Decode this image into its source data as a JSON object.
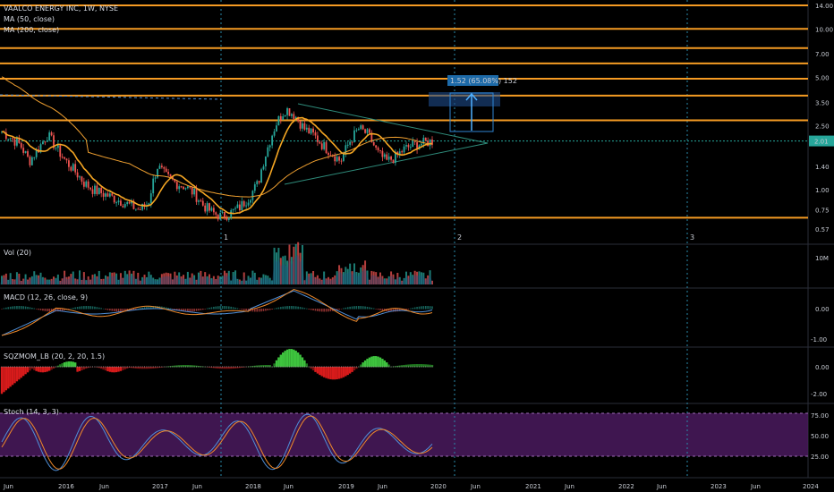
{
  "header": {
    "symbol_line": "VAALCO ENERGY INC, 1W, NYSE",
    "indicator_1": "MA (50, close)",
    "indicator_2": "MA (200, close)"
  },
  "panes": {
    "volume_title": "Vol (20)",
    "macd_title": "MACD (12, 26, close, 9)",
    "sqz_title": "SQZMOM_LB (20, 2, 20, 1.5)",
    "stoch_title": "Stoch (14, 3, 3)"
  },
  "measure_label": "1.52 (65.08%) 152",
  "price_badge": "2.01",
  "cycle_labels": [
    "1",
    "2",
    "3"
  ],
  "colors": {
    "background": "#000000",
    "up": "#26a69a",
    "down": "#ef5350",
    "ma50": "#f5a623",
    "ma200": "#f0a030",
    "hline": "#f59b23",
    "triangle": "#2e8b7a",
    "cycle": "#2a8aaa",
    "stoch_band": "#4a1a5e",
    "macd": "#4f8fd8",
    "signal": "#f08a2a",
    "current_price": "#26a69a"
  },
  "chart_data": [
    {
      "type": "candlestick",
      "title": "VAALCO ENERGY INC, 1W, NYSE",
      "y_scale": "log",
      "yticks": [
        "14.00",
        "10.00",
        "7.00",
        "5.00",
        "3.50",
        "2.50",
        "2.01",
        "1.40",
        "1.00",
        "0.75",
        "0.57"
      ],
      "x_labels": [
        "Jun",
        "2016",
        "Jun",
        "2017",
        "Jun",
        "2018",
        "Jun",
        "2019",
        "Jun",
        "2020",
        "Jun",
        "2021",
        "Jun",
        "2022",
        "Jun",
        "2023",
        "Jun",
        "2024"
      ],
      "horizontal_levels": [
        14.0,
        10.0,
        7.6,
        6.1,
        4.9,
        3.85,
        2.7,
        0.67
      ],
      "last_price": 2.01,
      "series": [
        {
          "name": "MA (50, close)"
        },
        {
          "name": "MA (200, close)"
        }
      ],
      "approx_closes": [
        2.3,
        2.1,
        1.9,
        1.5,
        1.8,
        2.2,
        1.8,
        1.5,
        1.3,
        1.1,
        1.0,
        0.95,
        0.9,
        0.85,
        0.8,
        0.75,
        0.82,
        1.4,
        1.2,
        1.1,
        1.05,
        0.95,
        0.8,
        0.72,
        0.68,
        0.72,
        0.78,
        0.9,
        1.1,
        1.8,
        2.6,
        3.2,
        2.9,
        2.4,
        2.2,
        1.9,
        1.7,
        1.5,
        2.0,
        2.4,
        2.2,
        1.7,
        1.5,
        1.6,
        1.8,
        1.9,
        1.95,
        2.01
      ]
    },
    {
      "type": "bar",
      "title": "Vol (20)",
      "yticks": [
        "10M"
      ]
    },
    {
      "type": "line",
      "title": "MACD (12, 26, close, 9)",
      "yticks": [
        "0.00",
        "-1.00"
      ]
    },
    {
      "type": "histogram",
      "title": "SQZMOM_LB (20, 2, 20, 1.5)",
      "yticks": [
        "0.00",
        "-2.00"
      ]
    },
    {
      "type": "line",
      "title": "Stoch (14, 3, 3)",
      "yticks": [
        "75.00",
        "50.00",
        "25.00"
      ],
      "band": [
        20,
        80
      ]
    }
  ]
}
